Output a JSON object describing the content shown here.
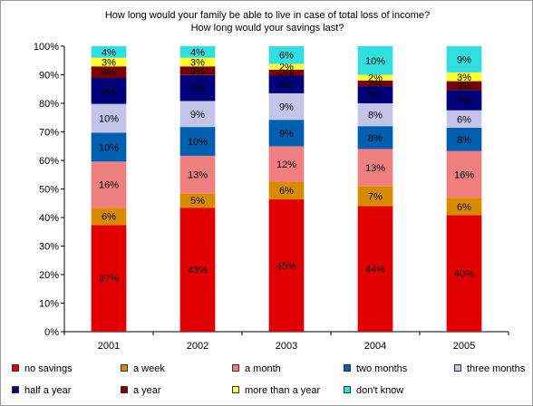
{
  "chart_data": {
    "type": "bar",
    "stacked": true,
    "normalized_percent": true,
    "title": "How long would your family be able to live in case of  total loss of income?",
    "subtitle": "How long would your savings last?",
    "categories": [
      "2001",
      "2002",
      "2003",
      "2004",
      "2005"
    ],
    "ylim": [
      0,
      100
    ],
    "y_ticks": [
      "0%",
      "10%",
      "20%",
      "30%",
      "40%",
      "50%",
      "60%",
      "70%",
      "80%",
      "90%",
      "100%"
    ],
    "grid": false,
    "legend_position": "bottom",
    "series": [
      {
        "name": "no savings",
        "color": "#e00000",
        "values": [
          37,
          43,
          45,
          44,
          40
        ]
      },
      {
        "name": "a week",
        "color": "#d98b00",
        "values": [
          6,
          5,
          6,
          7,
          6
        ]
      },
      {
        "name": "a month",
        "color": "#f08080",
        "values": [
          16,
          13,
          12,
          13,
          16
        ]
      },
      {
        "name": "two months",
        "color": "#0060b0",
        "values": [
          10,
          10,
          9,
          8,
          8
        ]
      },
      {
        "name": "three months",
        "color": "#c4c4e8",
        "values": [
          10,
          9,
          9,
          8,
          6
        ]
      },
      {
        "name": "half a year",
        "color": "#00007a",
        "values": [
          9,
          9,
          6,
          6,
          7
        ]
      },
      {
        "name": "a year",
        "color": "#7a0000",
        "values": [
          4,
          3,
          2,
          2,
          3
        ]
      },
      {
        "name": "more than a year",
        "color": "#ffff30",
        "values": [
          3,
          3,
          2,
          2,
          3
        ]
      },
      {
        "name": "don't know",
        "color": "#30e0e0",
        "values": [
          4,
          4,
          6,
          10,
          9
        ]
      }
    ],
    "data_labels": [
      [
        "37%",
        "6%",
        "16%",
        "10%",
        "10%",
        "9%",
        "4%",
        "3%",
        "4%"
      ],
      [
        "43%",
        "5%",
        "13%",
        "10%",
        "9%",
        "9%",
        "3%",
        "3%",
        "4%"
      ],
      [
        "45%",
        "6%",
        "12%",
        "9%",
        "9%",
        "6%",
        "2%",
        "2%",
        "6%"
      ],
      [
        "44%",
        "7%",
        "13%",
        "8%",
        "8%",
        "6%",
        "2%",
        "2%",
        "10%"
      ],
      [
        "40%",
        "6%",
        "16%",
        "8%",
        "6%",
        "7%",
        "3%",
        "3%",
        "9%"
      ]
    ]
  }
}
